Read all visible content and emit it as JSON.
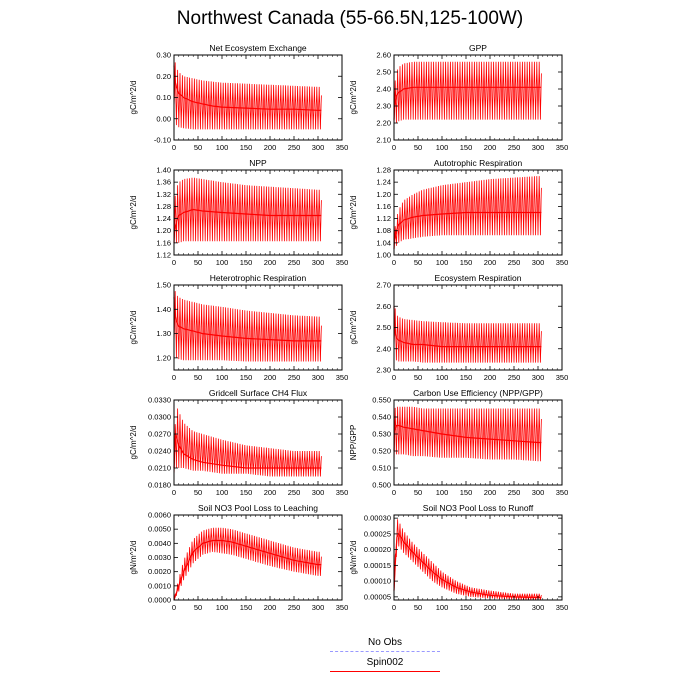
{
  "title": "Northwest Canada (55-66.5N,125-100W)",
  "legend": [
    {
      "label": "No Obs",
      "color": "#9999ff",
      "dash": true
    },
    {
      "label": "Spin002",
      "color": "#ff0000",
      "dash": false
    }
  ],
  "chart_data": [
    {
      "type": "line",
      "title": "Net Ecosystem Exchange",
      "ylabel": "gC/m^2/d",
      "xlim": [
        0,
        350
      ],
      "ylim": [
        -0.1,
        0.3
      ],
      "xticks": [
        "0",
        "50",
        "100",
        "150",
        "200",
        "250",
        "300",
        "350"
      ],
      "yticks": [
        "-0.10",
        "0.00",
        "0.10",
        "0.20",
        "0.30"
      ],
      "series": [
        {
          "x": [
            0,
            1,
            3,
            5,
            10,
            20,
            40,
            60,
            80,
            100,
            150,
            200,
            250,
            300,
            307
          ],
          "y_max": [
            0.29,
            0.28,
            0.26,
            0.24,
            0.22,
            0.2,
            0.19,
            0.18,
            0.175,
            0.17,
            0.165,
            0.16,
            0.155,
            0.15,
            0.15
          ],
          "y_min": [
            0.05,
            0.0,
            -0.02,
            -0.03,
            -0.04,
            -0.045,
            -0.05,
            -0.05,
            -0.05,
            -0.05,
            -0.05,
            -0.05,
            -0.05,
            -0.05,
            -0.05
          ],
          "y_mid": [
            0.25,
            0.2,
            0.17,
            0.15,
            0.12,
            0.1,
            0.08,
            0.07,
            0.06,
            0.055,
            0.05,
            0.045,
            0.045,
            0.04,
            0.04
          ]
        }
      ]
    },
    {
      "type": "line",
      "title": "GPP",
      "ylabel": "gC/m^2/d",
      "xlim": [
        0,
        350
      ],
      "ylim": [
        2.1,
        2.6
      ],
      "xticks": [
        "0",
        "50",
        "100",
        "150",
        "200",
        "250",
        "300",
        "350"
      ],
      "yticks": [
        "2.10",
        "2.20",
        "2.30",
        "2.40",
        "2.50",
        "2.60"
      ],
      "series": [
        {
          "x": [
            0,
            1,
            5,
            10,
            20,
            40,
            60,
            100,
            150,
            200,
            250,
            300,
            307
          ],
          "y_max": [
            2.28,
            2.42,
            2.5,
            2.53,
            2.55,
            2.56,
            2.56,
            2.56,
            2.56,
            2.56,
            2.56,
            2.56,
            2.56
          ],
          "y_min": [
            2.18,
            2.18,
            2.2,
            2.21,
            2.22,
            2.22,
            2.22,
            2.22,
            2.22,
            2.22,
            2.22,
            2.22,
            2.22
          ],
          "y_mid": [
            2.22,
            2.3,
            2.36,
            2.38,
            2.4,
            2.41,
            2.41,
            2.41,
            2.41,
            2.41,
            2.41,
            2.41,
            2.41
          ]
        }
      ]
    },
    {
      "type": "line",
      "title": "NPP",
      "ylabel": "gC/m^2/d",
      "xlim": [
        0,
        350
      ],
      "ylim": [
        1.12,
        1.4
      ],
      "xticks": [
        "0",
        "50",
        "100",
        "150",
        "200",
        "250",
        "300",
        "350"
      ],
      "yticks": [
        "1.12",
        "1.16",
        "1.20",
        "1.24",
        "1.28",
        "1.32",
        "1.36",
        "1.40"
      ],
      "series": [
        {
          "x": [
            0,
            1,
            5,
            10,
            20,
            40,
            60,
            100,
            150,
            200,
            250,
            300,
            307
          ],
          "y_max": [
            1.2,
            1.3,
            1.34,
            1.36,
            1.37,
            1.375,
            1.37,
            1.36,
            1.35,
            1.345,
            1.34,
            1.335,
            1.335
          ],
          "y_min": [
            1.14,
            1.15,
            1.16,
            1.16,
            1.165,
            1.165,
            1.165,
            1.165,
            1.165,
            1.165,
            1.165,
            1.165,
            1.165
          ],
          "y_mid": [
            1.16,
            1.2,
            1.23,
            1.25,
            1.26,
            1.27,
            1.265,
            1.26,
            1.255,
            1.25,
            1.25,
            1.25,
            1.25
          ]
        }
      ]
    },
    {
      "type": "line",
      "title": "Autotrophic Respiration",
      "ylabel": "gC/m^2/d",
      "xlim": [
        0,
        350
      ],
      "ylim": [
        1.0,
        1.28
      ],
      "xticks": [
        "0",
        "50",
        "100",
        "150",
        "200",
        "250",
        "300",
        "350"
      ],
      "yticks": [
        "1.00",
        "1.04",
        "1.08",
        "1.12",
        "1.16",
        "1.20",
        "1.24",
        "1.28"
      ],
      "series": [
        {
          "x": [
            0,
            1,
            5,
            10,
            20,
            40,
            60,
            100,
            150,
            200,
            250,
            300,
            307
          ],
          "y_max": [
            1.03,
            1.08,
            1.12,
            1.15,
            1.18,
            1.2,
            1.215,
            1.23,
            1.24,
            1.25,
            1.255,
            1.26,
            1.26
          ],
          "y_min": [
            1.01,
            1.02,
            1.03,
            1.04,
            1.05,
            1.055,
            1.06,
            1.065,
            1.065,
            1.065,
            1.065,
            1.065,
            1.065
          ],
          "y_mid": [
            1.02,
            1.05,
            1.08,
            1.1,
            1.115,
            1.125,
            1.13,
            1.135,
            1.14,
            1.14,
            1.14,
            1.14,
            1.14
          ]
        }
      ]
    },
    {
      "type": "line",
      "title": "Heterotrophic Respiration",
      "ylabel": "gC/m^2/d",
      "xlim": [
        0,
        350
      ],
      "ylim": [
        1.15,
        1.5
      ],
      "xticks": [
        "0",
        "50",
        "100",
        "150",
        "200",
        "250",
        "300",
        "350"
      ],
      "yticks": [
        "1.20",
        "1.30",
        "1.40",
        "1.50"
      ],
      "series": [
        {
          "x": [
            0,
            1,
            3,
            5,
            10,
            20,
            40,
            60,
            100,
            150,
            200,
            250,
            300,
            307
          ],
          "y_max": [
            1.5,
            1.49,
            1.47,
            1.46,
            1.45,
            1.44,
            1.43,
            1.42,
            1.41,
            1.395,
            1.385,
            1.375,
            1.37,
            1.37
          ],
          "y_min": [
            1.25,
            1.22,
            1.2,
            1.2,
            1.195,
            1.19,
            1.19,
            1.19,
            1.19,
            1.185,
            1.185,
            1.185,
            1.185,
            1.185
          ],
          "y_mid": [
            1.45,
            1.4,
            1.37,
            1.35,
            1.33,
            1.32,
            1.31,
            1.3,
            1.29,
            1.28,
            1.275,
            1.27,
            1.27,
            1.27
          ]
        }
      ]
    },
    {
      "type": "line",
      "title": "Ecosystem Respiration",
      "ylabel": "gC/m^2/d",
      "xlim": [
        0,
        350
      ],
      "ylim": [
        2.3,
        2.7
      ],
      "xticks": [
        "0",
        "50",
        "100",
        "150",
        "200",
        "250",
        "300",
        "350"
      ],
      "yticks": [
        "2.30",
        "2.40",
        "2.50",
        "2.60",
        "2.70"
      ],
      "series": [
        {
          "x": [
            0,
            1,
            3,
            5,
            10,
            20,
            40,
            60,
            100,
            150,
            200,
            250,
            300,
            307
          ],
          "y_max": [
            2.68,
            2.62,
            2.58,
            2.56,
            2.55,
            2.54,
            2.535,
            2.53,
            2.525,
            2.52,
            2.52,
            2.52,
            2.52,
            2.52
          ],
          "y_min": [
            2.4,
            2.36,
            2.35,
            2.345,
            2.34,
            2.34,
            2.34,
            2.335,
            2.335,
            2.335,
            2.335,
            2.335,
            2.335,
            2.335
          ],
          "y_mid": [
            2.6,
            2.5,
            2.47,
            2.45,
            2.44,
            2.43,
            2.42,
            2.42,
            2.41,
            2.41,
            2.41,
            2.41,
            2.41,
            2.41
          ]
        }
      ]
    },
    {
      "type": "line",
      "title": "Gridcell Surface CH4 Flux",
      "ylabel": "gC/m^2/d",
      "xlim": [
        0,
        350
      ],
      "ylim": [
        0.018,
        0.033
      ],
      "xticks": [
        "0",
        "50",
        "100",
        "150",
        "200",
        "250",
        "300",
        "350"
      ],
      "yticks": [
        "0.0180",
        "0.0210",
        "0.0240",
        "0.0270",
        "0.0300",
        "0.0330"
      ],
      "series": [
        {
          "x": [
            0,
            1,
            3,
            5,
            10,
            20,
            40,
            60,
            100,
            150,
            200,
            250,
            300,
            307
          ],
          "y_max": [
            0.022,
            0.025,
            0.03,
            0.032,
            0.031,
            0.029,
            0.0275,
            0.027,
            0.026,
            0.025,
            0.0245,
            0.024,
            0.024,
            0.024
          ],
          "y_min": [
            0.0195,
            0.02,
            0.0205,
            0.021,
            0.021,
            0.021,
            0.0205,
            0.0205,
            0.02,
            0.02,
            0.0195,
            0.0195,
            0.0195,
            0.0195
          ],
          "y_mid": [
            0.021,
            0.024,
            0.027,
            0.0265,
            0.025,
            0.0235,
            0.0225,
            0.022,
            0.0215,
            0.021,
            0.021,
            0.021,
            0.021,
            0.021
          ]
        }
      ]
    },
    {
      "type": "line",
      "title": "Carbon Use Efficiency (NPP/GPP)",
      "ylabel": "NPP/GPP",
      "xlim": [
        0,
        350
      ],
      "ylim": [
        0.5,
        0.55
      ],
      "xticks": [
        "0",
        "50",
        "100",
        "150",
        "200",
        "250",
        "300",
        "350"
      ],
      "yticks": [
        "0.500",
        "0.510",
        "0.520",
        "0.530",
        "0.540",
        "0.550"
      ],
      "series": [
        {
          "x": [
            0,
            1,
            5,
            10,
            20,
            40,
            60,
            100,
            150,
            200,
            250,
            300,
            307
          ],
          "y_max": [
            0.528,
            0.545,
            0.546,
            0.546,
            0.546,
            0.546,
            0.545,
            0.545,
            0.545,
            0.545,
            0.545,
            0.545,
            0.545
          ],
          "y_min": [
            0.51,
            0.515,
            0.518,
            0.518,
            0.518,
            0.517,
            0.517,
            0.516,
            0.516,
            0.515,
            0.515,
            0.514,
            0.514
          ],
          "y_mid": [
            0.52,
            0.532,
            0.535,
            0.535,
            0.534,
            0.533,
            0.532,
            0.53,
            0.528,
            0.527,
            0.526,
            0.525,
            0.525
          ]
        }
      ]
    },
    {
      "type": "line",
      "title": "Soil NO3 Pool Loss to Leaching",
      "ylabel": "gN/m^2/d",
      "xlim": [
        0,
        350
      ],
      "ylim": [
        0,
        0.006
      ],
      "xticks": [
        "0",
        "50",
        "100",
        "150",
        "200",
        "250",
        "300",
        "350"
      ],
      "yticks": [
        "0.0000",
        "0.0010",
        "0.0020",
        "0.0030",
        "0.0040",
        "0.0050",
        "0.0060"
      ],
      "series": [
        {
          "x": [
            0,
            5,
            10,
            20,
            40,
            60,
            80,
            100,
            120,
            150,
            200,
            250,
            300,
            307
          ],
          "y_max": [
            0.0,
            0.0008,
            0.0015,
            0.0028,
            0.0043,
            0.0049,
            0.0051,
            0.0051,
            0.005,
            0.0047,
            0.0042,
            0.0037,
            0.0034,
            0.0034
          ],
          "y_min": [
            0.0,
            0.0003,
            0.0006,
            0.0014,
            0.0026,
            0.0032,
            0.0034,
            0.0033,
            0.0032,
            0.0029,
            0.0024,
            0.002,
            0.0017,
            0.0017
          ],
          "y_mid": [
            0.0,
            0.0005,
            0.001,
            0.002,
            0.0034,
            0.004,
            0.0042,
            0.0042,
            0.0041,
            0.0038,
            0.0033,
            0.0028,
            0.0025,
            0.0025
          ]
        }
      ]
    },
    {
      "type": "line",
      "title": "Soil NO3 Pool Loss to Runoff",
      "ylabel": "gN/m^2/d",
      "xlim": [
        0,
        350
      ],
      "ylim": [
        4e-05,
        0.00031
      ],
      "xticks": [
        "0",
        "50",
        "100",
        "150",
        "200",
        "250",
        "300",
        "350"
      ],
      "yticks": [
        "0.00005",
        "0.00010",
        "0.00015",
        "0.00020",
        "0.00025",
        "0.00030"
      ],
      "series": [
        {
          "x": [
            0,
            3,
            6,
            10,
            20,
            40,
            60,
            80,
            100,
            130,
            160,
            200,
            250,
            300,
            307
          ],
          "y_max": [
            8e-05,
            0.0002,
            0.0003,
            0.00029,
            0.00026,
            0.00022,
            0.00019,
            0.00016,
            0.00013,
            0.0001,
            8e-05,
            7e-05,
            6e-05,
            6e-05,
            6e-05
          ],
          "y_min": [
            6e-05,
            0.00013,
            0.0002,
            0.00021,
            0.00019,
            0.00016,
            0.00013,
            0.0001,
            8e-05,
            6e-05,
            5e-05,
            4.5e-05,
            4.2e-05,
            4e-05,
            4e-05
          ],
          "y_mid": [
            7e-05,
            0.00016,
            0.00024,
            0.00025,
            0.000225,
            0.00019,
            0.00016,
            0.00013,
            0.000105,
            8e-05,
            6.5e-05,
            5.5e-05,
            5e-05,
            4.8e-05,
            4.8e-05
          ]
        }
      ]
    }
  ]
}
